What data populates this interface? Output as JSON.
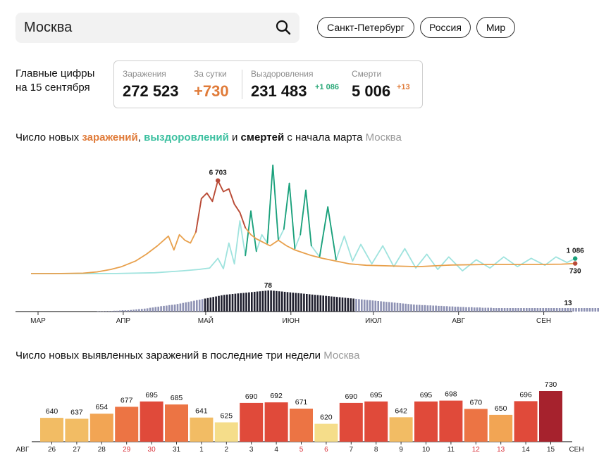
{
  "search": {
    "value": "Москва",
    "icon": "search-icon"
  },
  "chips": [
    "Санкт-Петербург",
    "Россия",
    "Мир"
  ],
  "summary": {
    "label_line1": "Главные цифры",
    "label_line2": "на 15 сентября",
    "infections": {
      "label": "Заражения",
      "value": "272 523"
    },
    "daily": {
      "label": "За сутки",
      "value": "+730"
    },
    "recovered": {
      "label": "Выздоровления",
      "value": "231 483",
      "delta": "+1 086"
    },
    "deaths": {
      "label": "Смерти",
      "value": "5 006",
      "delta": "+13"
    }
  },
  "colors": {
    "infections": "#e8a04c",
    "infections_peak": "#b84a3a",
    "recovered": "#9fe3de",
    "recovered_peak": "#1aa07a",
    "deaths": "#8e92b4",
    "deaths_peak": "#1f1f2e",
    "axis": "#333333"
  },
  "chart1": {
    "title_prefix": "Число новых ",
    "title_inf": "заражений",
    "title_sep": ", ",
    "title_rec": "выздоровлений",
    "title_and": " и ",
    "title_dth": "смертей",
    "title_suffix": " с начала марта",
    "region": "Москва"
  },
  "chart2": {
    "title": "Число новых выявленных заражений в последние три недели",
    "region": "Москва",
    "left_month": "АВГ",
    "right_month": "СЕН"
  },
  "chart_data": [
    {
      "type": "line",
      "x_range": [
        "2020-03-01",
        "2020-09-15"
      ],
      "x_ticks": [
        "МАР",
        "АПР",
        "МАЙ",
        "ИЮН",
        "ИЮЛ",
        "АВГ",
        "СЕН"
      ],
      "series": [
        {
          "name": "заражений",
          "points": [
            [
              "2020-03-01",
              0
            ],
            [
              "2020-03-10",
              1
            ],
            [
              "2020-03-20",
              30
            ],
            [
              "2020-03-25",
              120
            ],
            [
              "2020-03-30",
              300
            ],
            [
              "2020-04-03",
              500
            ],
            [
              "2020-04-08",
              900
            ],
            [
              "2020-04-12",
              1400
            ],
            [
              "2020-04-16",
              2000
            ],
            [
              "2020-04-20",
              2700
            ],
            [
              "2020-04-22",
              1700
            ],
            [
              "2020-04-24",
              2800
            ],
            [
              "2020-04-26",
              2400
            ],
            [
              "2020-04-28",
              2200
            ],
            [
              "2020-04-30",
              3000
            ],
            [
              "2020-05-02",
              5400
            ],
            [
              "2020-05-04",
              5800
            ],
            [
              "2020-05-06",
              5200
            ],
            [
              "2020-05-08",
              6703
            ],
            [
              "2020-05-10",
              5900
            ],
            [
              "2020-05-12",
              6100
            ],
            [
              "2020-05-14",
              5000
            ],
            [
              "2020-05-16",
              4400
            ],
            [
              "2020-05-18",
              3300
            ],
            [
              "2020-05-20",
              2800
            ],
            [
              "2020-05-22",
              2500
            ],
            [
              "2020-05-24",
              2300
            ],
            [
              "2020-05-27",
              2000
            ],
            [
              "2020-05-30",
              2400
            ],
            [
              "2020-06-02",
              2000
            ],
            [
              "2020-06-05",
              1700
            ],
            [
              "2020-06-08",
              1500
            ],
            [
              "2020-06-11",
              1300
            ],
            [
              "2020-06-15",
              1100
            ],
            [
              "2020-06-20",
              900
            ],
            [
              "2020-06-25",
              700
            ],
            [
              "2020-07-01",
              600
            ],
            [
              "2020-07-10",
              550
            ],
            [
              "2020-07-20",
              500
            ],
            [
              "2020-08-01",
              620
            ],
            [
              "2020-08-15",
              660
            ],
            [
              "2020-09-01",
              660
            ],
            [
              "2020-09-10",
              680
            ],
            [
              "2020-09-15",
              730
            ]
          ],
          "end_label": "730",
          "peak_label": "6 703"
        },
        {
          "name": "выздоровлений",
          "points": [
            [
              "2020-03-01",
              0
            ],
            [
              "2020-04-01",
              5
            ],
            [
              "2020-04-15",
              60
            ],
            [
              "2020-04-25",
              200
            ],
            [
              "2020-05-01",
              300
            ],
            [
              "2020-05-05",
              400
            ],
            [
              "2020-05-08",
              1100
            ],
            [
              "2020-05-10",
              350
            ],
            [
              "2020-05-12",
              2200
            ],
            [
              "2020-05-14",
              700
            ],
            [
              "2020-05-16",
              3800
            ],
            [
              "2020-05-18",
              1300
            ],
            [
              "2020-05-20",
              4500
            ],
            [
              "2020-05-22",
              1600
            ],
            [
              "2020-05-24",
              2800
            ],
            [
              "2020-05-26",
              2200
            ],
            [
              "2020-05-28",
              7800
            ],
            [
              "2020-05-30",
              2400
            ],
            [
              "2020-06-01",
              3200
            ],
            [
              "2020-06-03",
              6500
            ],
            [
              "2020-06-05",
              1800
            ],
            [
              "2020-06-07",
              2800
            ],
            [
              "2020-06-09",
              6000
            ],
            [
              "2020-06-11",
              2000
            ],
            [
              "2020-06-14",
              1200
            ],
            [
              "2020-06-17",
              4800
            ],
            [
              "2020-06-20",
              1000
            ],
            [
              "2020-06-23",
              2700
            ],
            [
              "2020-06-26",
              900
            ],
            [
              "2020-06-29",
              2100
            ],
            [
              "2020-07-03",
              700
            ],
            [
              "2020-07-07",
              2000
            ],
            [
              "2020-07-11",
              500
            ],
            [
              "2020-07-15",
              1800
            ],
            [
              "2020-07-19",
              400
            ],
            [
              "2020-07-23",
              1400
            ],
            [
              "2020-07-27",
              300
            ],
            [
              "2020-07-31",
              1200
            ],
            [
              "2020-08-05",
              200
            ],
            [
              "2020-08-10",
              1000
            ],
            [
              "2020-08-15",
              400
            ],
            [
              "2020-08-20",
              1200
            ],
            [
              "2020-08-25",
              500
            ],
            [
              "2020-08-30",
              1100
            ],
            [
              "2020-09-04",
              600
            ],
            [
              "2020-09-08",
              1200
            ],
            [
              "2020-09-12",
              800
            ],
            [
              "2020-09-15",
              1086
            ]
          ],
          "end_label": "1 086"
        },
        {
          "name": "смертей",
          "type": "bar",
          "start": "2020-03-25",
          "values": [
            1,
            1,
            1,
            2,
            2,
            2,
            3,
            3,
            4,
            5,
            5,
            5,
            6,
            7,
            8,
            9,
            10,
            11,
            12,
            14,
            15,
            17,
            18,
            20,
            21,
            22,
            24,
            25,
            26,
            28,
            30,
            32,
            34,
            36,
            38,
            40,
            42,
            44,
            46,
            48,
            50,
            52,
            54,
            56,
            58,
            60,
            62,
            63,
            64,
            65,
            66,
            67,
            68,
            69,
            70,
            71,
            72,
            73,
            74,
            75,
            76,
            77,
            78,
            78,
            77,
            76,
            75,
            74,
            73,
            72,
            71,
            70,
            69,
            68,
            67,
            66,
            65,
            64,
            63,
            62,
            61,
            60,
            59,
            58,
            57,
            56,
            55,
            54,
            53,
            52,
            51,
            50,
            49,
            48,
            47,
            46,
            45,
            44,
            43,
            42,
            41,
            40,
            39,
            38,
            37,
            36,
            35,
            34,
            33,
            32,
            31,
            30,
            29,
            28,
            27,
            26,
            25,
            25,
            24,
            24,
            23,
            23,
            22,
            22,
            21,
            21,
            20,
            20,
            19,
            19,
            18,
            18,
            17,
            17,
            16,
            16,
            16,
            15,
            15,
            15,
            14,
            14,
            14,
            14,
            13,
            13,
            13,
            13,
            13,
            13,
            13,
            13,
            13,
            13,
            13,
            13,
            13,
            13,
            13,
            13,
            13,
            13,
            13,
            13,
            13,
            13,
            13,
            13,
            13,
            13,
            13,
            13,
            13,
            13,
            13,
            13,
            13,
            13,
            13,
            13,
            13,
            13,
            13,
            13
          ],
          "peak_label": "78",
          "end_label": "13"
        }
      ]
    },
    {
      "type": "bar",
      "categories": [
        "26",
        "27",
        "28",
        "29",
        "30",
        "31",
        "1",
        "2",
        "3",
        "4",
        "5",
        "6",
        "7",
        "8",
        "9",
        "10",
        "11",
        "12",
        "13",
        "14",
        "15"
      ],
      "weekend": [
        false,
        false,
        false,
        true,
        true,
        false,
        false,
        false,
        false,
        false,
        true,
        true,
        false,
        false,
        false,
        false,
        false,
        true,
        true,
        false,
        false
      ],
      "values": [
        640,
        637,
        654,
        677,
        695,
        685,
        641,
        625,
        690,
        692,
        671,
        620,
        690,
        695,
        642,
        695,
        698,
        670,
        650,
        696,
        730
      ],
      "ylim": [
        0,
        730
      ]
    }
  ]
}
